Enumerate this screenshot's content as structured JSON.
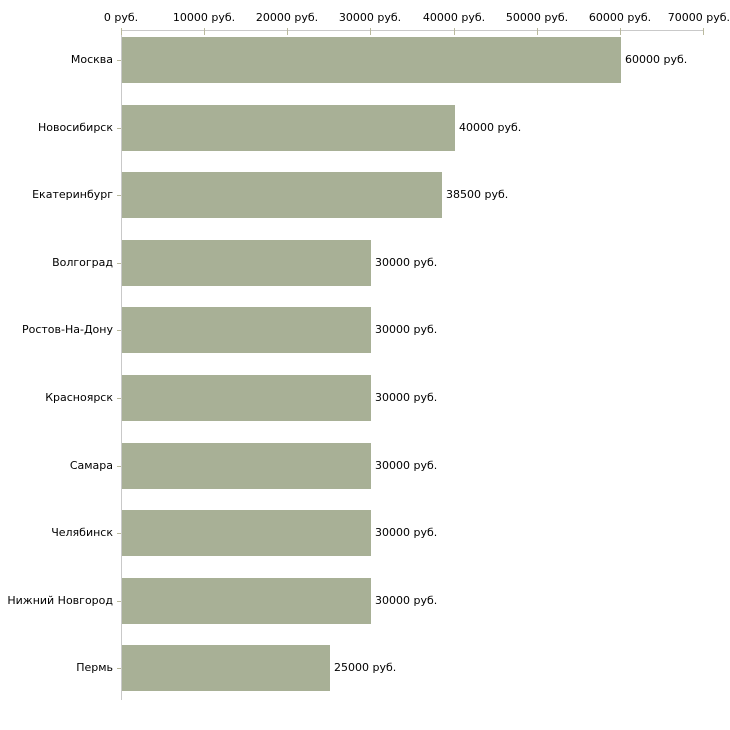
{
  "chart_data": {
    "type": "bar",
    "orientation": "horizontal",
    "title": "",
    "categories": [
      "Москва",
      "Новосибирск",
      "Екатеринбург",
      "Волгоград",
      "Ростов-На-Дону",
      "Красноярск",
      "Самара",
      "Челябинск",
      "Нижний Новгород",
      "Пермь"
    ],
    "values": [
      60000,
      40000,
      38500,
      30000,
      30000,
      30000,
      30000,
      30000,
      30000,
      25000
    ],
    "value_labels": [
      "60000 руб.",
      "40000 руб.",
      "38500 руб.",
      "30000 руб.",
      "30000 руб.",
      "30000 руб.",
      "30000 руб.",
      "30000 руб.",
      "30000 руб.",
      "25000 руб."
    ],
    "x_axis": {
      "position": "top",
      "min": 0,
      "max": 70000,
      "unit": "руб.",
      "tick_values": [
        0,
        10000,
        20000,
        30000,
        40000,
        50000,
        60000,
        70000
      ],
      "tick_labels": [
        "0 руб.",
        "10000 руб.",
        "20000 руб.",
        "30000 руб.",
        "40000 руб.",
        "50000 руб.",
        "60000 руб.",
        "70000 руб."
      ]
    },
    "grid": false,
    "legend_position": "none",
    "colors": {
      "bar": "#a8b096",
      "axis": "#c9c9c9",
      "tick": "#b9b99d",
      "text": "#000000",
      "background": "#ffffff"
    }
  }
}
